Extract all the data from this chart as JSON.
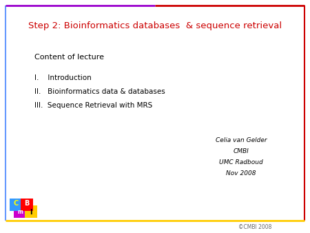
{
  "title": "Step 2: Bioinformatics databases  & sequence retrieval",
  "title_color": "#cc0000",
  "title_fontsize": 9.5,
  "content_header": "Content of lecture",
  "content_header_fontsize": 8.0,
  "items": [
    "I.    Introduction",
    "II.   Bioinformatics data & databases",
    "III.  Sequence Retrieval with MRS"
  ],
  "item_fontsize": 7.5,
  "author_lines": [
    "Celia van Gelder",
    "CMBI",
    "UMC Radboud",
    "Nov 2008"
  ],
  "author_fontsize": 6.5,
  "copyright": "©CMBI 2008",
  "copyright_fontsize": 5.5,
  "bg_color": "#ffffff",
  "border_left_color": "#6699ff",
  "border_right_color": "#cc0000",
  "top_line_left_color": "#9900cc",
  "top_line_right_color": "#cc0000",
  "bottom_line_color": "#ffcc00",
  "logo_C_bg": "#3399ff",
  "logo_C_text": "#ffff00",
  "logo_m_bg": "#cc00cc",
  "logo_m_text": "#ffffff",
  "logo_B_bg": "#ff0000",
  "logo_B_text": "#ffffff",
  "logo_I_bg": "#ffcc00",
  "logo_I_text": "#000000"
}
